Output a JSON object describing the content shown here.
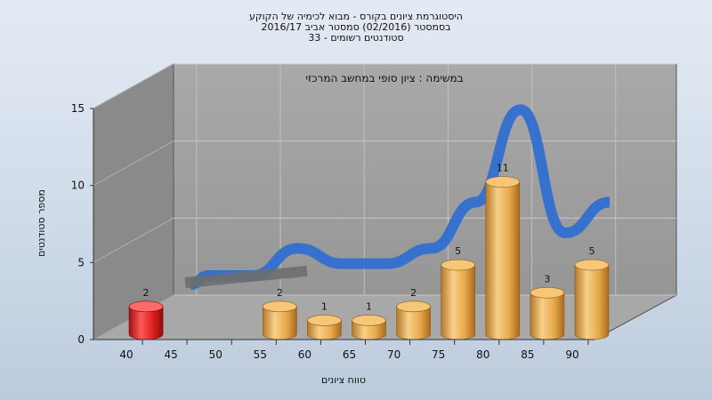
{
  "title_lines": [
    "היסטוגרמת ציונים בקורס - מבוא לכימיה של הקוקע",
    "בסמסטר (02/2016) סמסטר אביב 2016/17",
    "סטודנטים רשומים - 33"
  ],
  "subtitle": "במשימה : ציון סופי במחשב המרכזי",
  "colors": {
    "bar_normal": "#e8a94a",
    "bar_fail": "#e02020",
    "trend_line": "#2f6fd0",
    "back_wall": "#9e9e9e",
    "side_wall": "#8a8a8a",
    "floor": "#a8a8a8"
  },
  "chart_data": {
    "type": "bar",
    "title": "היסטוגרמת ציונים בקורס - מבוא לכימיה של הקוקע",
    "xlabel": "טווח ציונים",
    "ylabel": "מספר סטודנטים",
    "ylim": [
      0,
      15
    ],
    "yticks": [
      0,
      5,
      10,
      15
    ],
    "categories": [
      "40",
      "45",
      "50",
      "55",
      "60",
      "65",
      "70",
      "75",
      "80",
      "85",
      "90"
    ],
    "series": [
      {
        "values": [
          2,
          0,
          0,
          2,
          1,
          1,
          2,
          5,
          11,
          3,
          5
        ],
        "point_colors": [
          "#e02020",
          "#e8a94a",
          "#e8a94a",
          "#e8a94a",
          "#e8a94a",
          "#e8a94a",
          "#e8a94a",
          "#e8a94a",
          "#e8a94a",
          "#e8a94a",
          "#e8a94a"
        ]
      }
    ],
    "data_labels": [
      "2",
      "",
      "",
      "2",
      "1",
      "1",
      "2",
      "5",
      "11",
      "3",
      "5"
    ],
    "trend_line": true,
    "grid": true,
    "legend": "none"
  }
}
